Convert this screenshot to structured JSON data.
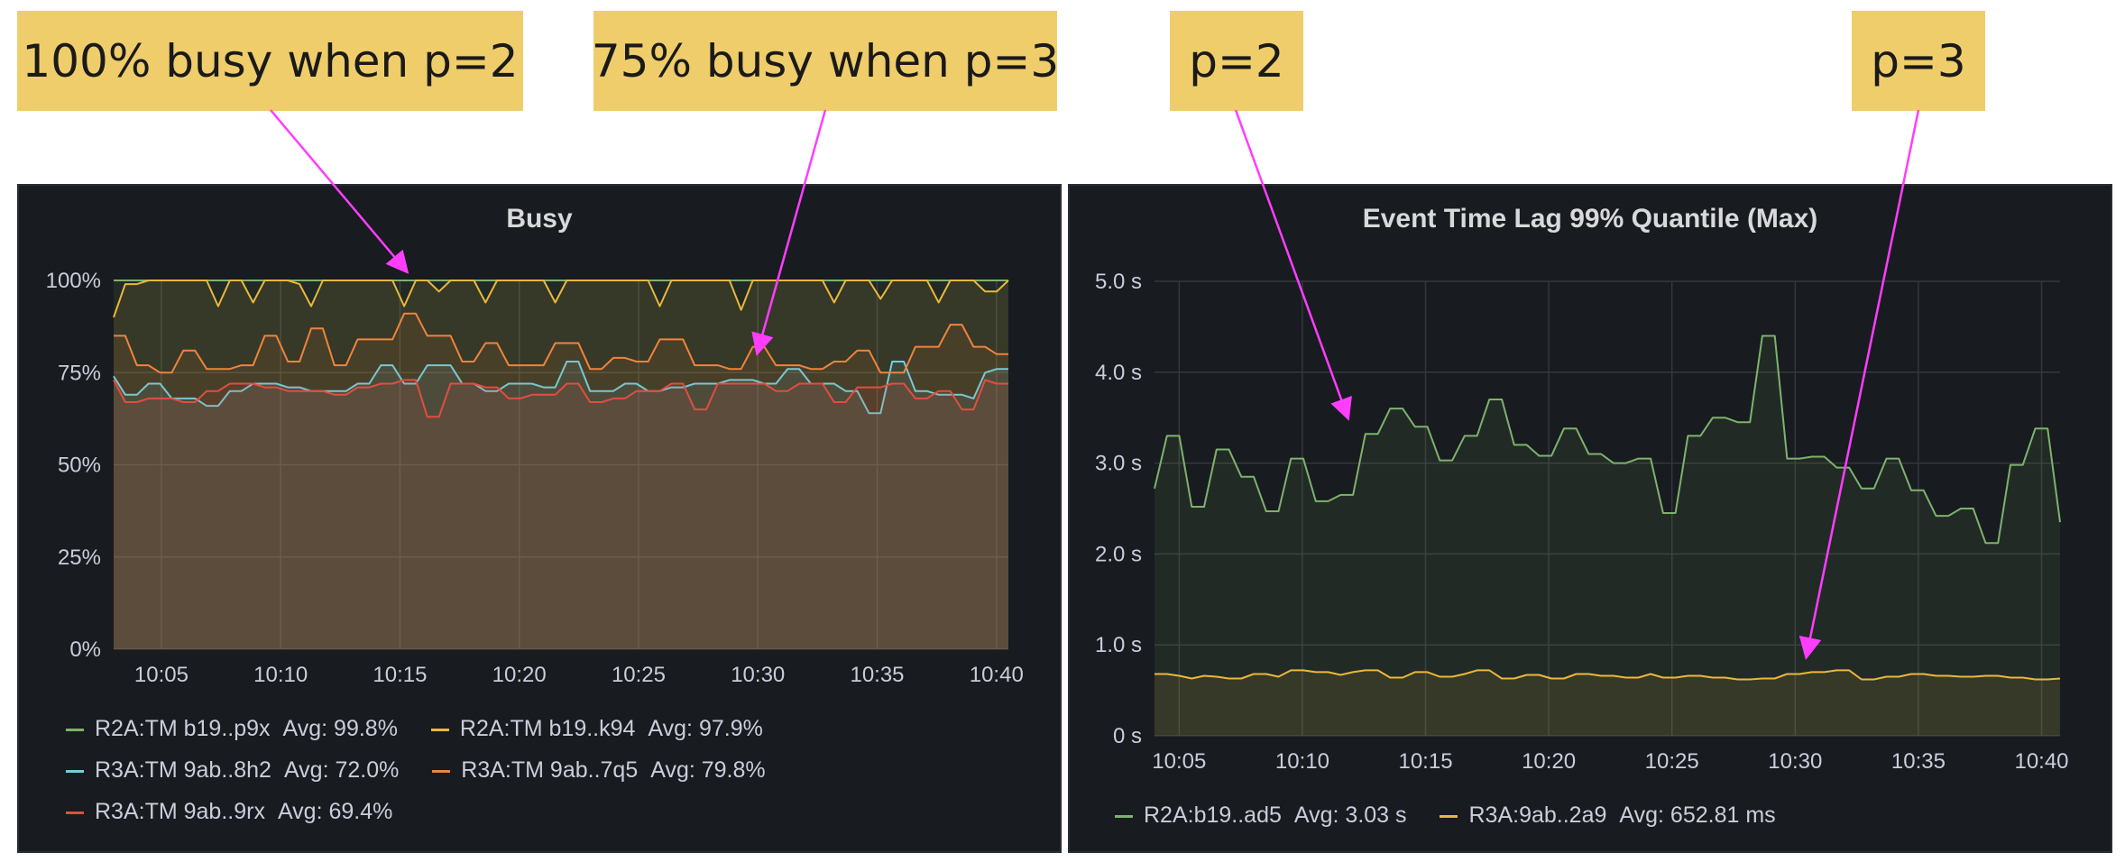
{
  "annotations": [
    {
      "text": "100% busy when p=2"
    },
    {
      "text": "75% busy when p=3"
    },
    {
      "text": "p=2"
    },
    {
      "text": "p=3"
    }
  ],
  "colors": {
    "annotation_bg": "#efcd6b",
    "arrow": "#ff3dff",
    "panel_bg": "#181b1f",
    "series_green": "#7eb26d",
    "series_yellow": "#eab839",
    "series_cyan": "#6ed0e0",
    "series_orange": "#ef843c",
    "series_red": "#e24d42"
  },
  "chart_data": [
    {
      "type": "line",
      "title": "Busy",
      "xlabel": "",
      "ylabel": "",
      "x_ticks": [
        "10:05",
        "10:10",
        "10:15",
        "10:20",
        "10:25",
        "10:30",
        "10:35",
        "10:40"
      ],
      "y_ticks": [
        "0%",
        "25%",
        "50%",
        "75%",
        "100%"
      ],
      "xlim": [
        "10:03",
        "10:40:30"
      ],
      "ylim": [
        0,
        100
      ],
      "grid": true,
      "fill": "area",
      "legend_position": "bottom",
      "series": [
        {
          "name": "R2A:TM b19..p9x",
          "avg": "Avg: 99.8%",
          "color": "#7eb26d",
          "values": [
            100,
            100,
            100,
            100,
            100,
            100,
            100,
            100,
            100,
            100,
            100,
            100,
            100,
            100,
            100,
            100,
            100,
            100,
            100,
            100,
            100,
            100,
            100,
            100,
            100,
            100,
            100,
            100,
            100,
            100,
            100,
            100,
            100,
            100,
            100,
            100,
            100,
            100,
            100,
            100,
            100,
            100,
            100,
            100,
            100,
            100,
            100,
            100,
            100,
            100,
            100,
            100,
            100,
            100,
            100,
            100,
            100,
            100,
            100,
            100,
            100,
            100,
            100,
            100,
            100,
            100,
            100,
            100,
            100,
            100,
            100,
            100,
            100,
            100,
            100,
            100,
            100,
            100
          ]
        },
        {
          "name": "R2A:TM b19..k94",
          "avg": "Avg: 97.9%",
          "color": "#eab839",
          "values": [
            90,
            99,
            99,
            100,
            100,
            100,
            100,
            100,
            100,
            93,
            100,
            100,
            94,
            100,
            100,
            100,
            99,
            93,
            100,
            100,
            100,
            100,
            100,
            100,
            100,
            93,
            100,
            100,
            97,
            100,
            100,
            100,
            94,
            100,
            100,
            100,
            100,
            100,
            94,
            100,
            100,
            100,
            100,
            100,
            100,
            100,
            100,
            93,
            100,
            100,
            100,
            100,
            100,
            100,
            92,
            100,
            100,
            100,
            100,
            100,
            100,
            100,
            94,
            100,
            100,
            100,
            95,
            100,
            100,
            100,
            100,
            94,
            100,
            100,
            100,
            97,
            97,
            100
          ]
        },
        {
          "name": "R3A:TM 9ab..8h2",
          "avg": "Avg: 72.0%",
          "color": "#6ed0e0",
          "values": [
            74,
            69,
            69,
            72,
            72,
            68,
            68,
            68,
            66,
            66,
            70,
            70,
            72,
            72,
            72,
            71,
            71,
            70,
            70,
            70,
            70,
            72,
            72,
            77,
            77,
            72,
            72,
            77,
            77,
            77,
            72,
            72,
            70,
            70,
            72,
            72,
            72,
            71,
            71,
            78,
            78,
            70,
            70,
            70,
            72,
            72,
            70,
            70,
            71,
            71,
            72,
            72,
            72,
            73,
            73,
            73,
            72,
            72,
            76,
            76,
            72,
            72,
            72,
            70,
            70,
            64,
            64,
            78,
            78,
            70,
            70,
            69,
            69,
            69,
            68,
            75,
            76,
            76
          ]
        },
        {
          "name": "R3A:TM 9ab..7q5",
          "avg": "Avg: 79.8%",
          "color": "#ef843c",
          "values": [
            85,
            85,
            77,
            77,
            75,
            75,
            81,
            81,
            76,
            76,
            76,
            77,
            77,
            85,
            85,
            78,
            78,
            87,
            87,
            77,
            77,
            84,
            84,
            84,
            84,
            91,
            91,
            85,
            85,
            85,
            78,
            78,
            83,
            83,
            77,
            77,
            77,
            77,
            83,
            83,
            83,
            76,
            76,
            79,
            79,
            78,
            78,
            84,
            84,
            84,
            77,
            77,
            77,
            76,
            76,
            82,
            82,
            77,
            77,
            77,
            76,
            76,
            78,
            78,
            81,
            81,
            75,
            75,
            75,
            82,
            82,
            82,
            88,
            88,
            82,
            82,
            80,
            80
          ]
        },
        {
          "name": "R3A:TM 9ab..9rx",
          "avg": "Avg: 69.4%",
          "color": "#e24d42",
          "values": [
            73,
            67,
            67,
            68,
            68,
            68,
            67,
            67,
            70,
            70,
            72,
            72,
            72,
            71,
            71,
            70,
            70,
            70,
            70,
            69,
            69,
            71,
            71,
            72,
            72,
            73,
            73,
            63,
            63,
            72,
            72,
            72,
            71,
            71,
            68,
            68,
            69,
            69,
            69,
            72,
            72,
            67,
            67,
            68,
            68,
            70,
            70,
            70,
            72,
            72,
            65,
            65,
            72,
            72,
            72,
            72,
            72,
            70,
            70,
            72,
            72,
            72,
            67,
            67,
            71,
            71,
            71,
            72,
            72,
            68,
            68,
            70,
            70,
            65,
            65,
            73,
            72,
            72
          ]
        }
      ]
    },
    {
      "type": "line",
      "title": "Event Time Lag 99% Quantile (Max)",
      "xlabel": "",
      "ylabel": "",
      "x_ticks": [
        "10:05",
        "10:10",
        "10:15",
        "10:20",
        "10:25",
        "10:30",
        "10:35",
        "10:40"
      ],
      "y_ticks": [
        "0 s",
        "1.0 s",
        "2.0 s",
        "3.0 s",
        "4.0 s",
        "5.0 s"
      ],
      "xlim": [
        "10:04",
        "10:40:45"
      ],
      "ylim": [
        0,
        5
      ],
      "grid": true,
      "fill": "area",
      "legend_position": "bottom",
      "series": [
        {
          "name": "R2A:b19..ad5",
          "avg": "Avg: 3.03 s",
          "color": "#7eb26d",
          "values": [
            2.72,
            3.3,
            3.3,
            2.52,
            2.52,
            3.15,
            3.15,
            2.85,
            2.85,
            2.47,
            2.47,
            3.05,
            3.05,
            2.58,
            2.58,
            2.65,
            2.65,
            3.32,
            3.32,
            3.6,
            3.6,
            3.4,
            3.4,
            3.03,
            3.03,
            3.3,
            3.3,
            3.7,
            3.7,
            3.2,
            3.2,
            3.08,
            3.08,
            3.38,
            3.38,
            3.1,
            3.1,
            3.0,
            3.0,
            3.05,
            3.05,
            2.45,
            2.45,
            3.3,
            3.3,
            3.5,
            3.5,
            3.45,
            3.45,
            4.4,
            4.4,
            3.05,
            3.05,
            3.07,
            3.07,
            2.95,
            2.95,
            2.72,
            2.72,
            3.05,
            3.05,
            2.7,
            2.7,
            2.42,
            2.42,
            2.5,
            2.5,
            2.12,
            2.12,
            2.98,
            2.98,
            3.38,
            3.38,
            2.35
          ]
        },
        {
          "name": "R3A:9ab..2a9",
          "avg": "Avg: 652.81 ms",
          "color": "#eab839",
          "values": [
            0.68,
            0.68,
            0.66,
            0.63,
            0.66,
            0.65,
            0.63,
            0.63,
            0.68,
            0.68,
            0.65,
            0.72,
            0.72,
            0.7,
            0.7,
            0.67,
            0.7,
            0.72,
            0.72,
            0.64,
            0.64,
            0.7,
            0.7,
            0.65,
            0.65,
            0.68,
            0.72,
            0.72,
            0.63,
            0.63,
            0.67,
            0.67,
            0.63,
            0.63,
            0.68,
            0.68,
            0.66,
            0.66,
            0.64,
            0.64,
            0.68,
            0.64,
            0.64,
            0.66,
            0.66,
            0.64,
            0.64,
            0.62,
            0.62,
            0.63,
            0.63,
            0.68,
            0.68,
            0.7,
            0.7,
            0.72,
            0.72,
            0.62,
            0.62,
            0.65,
            0.65,
            0.68,
            0.68,
            0.66,
            0.66,
            0.65,
            0.65,
            0.66,
            0.66,
            0.64,
            0.64,
            0.62,
            0.62,
            0.63
          ]
        }
      ]
    }
  ]
}
